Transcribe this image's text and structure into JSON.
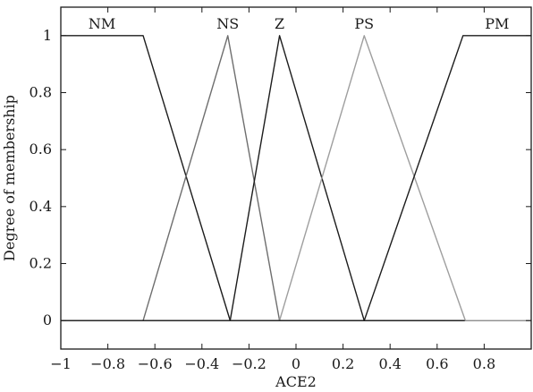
{
  "chart_data": {
    "type": "line",
    "title": "",
    "xlabel": "ACE2",
    "ylabel": "Degree of membership",
    "xlim": [
      -1,
      1
    ],
    "ylim": [
      -0.1,
      1.1
    ],
    "xticks": [
      -1,
      -0.8,
      -0.6,
      -0.4,
      -0.2,
      0,
      0.2,
      0.4,
      0.6,
      0.8
    ],
    "xtick_labels": [
      "−1",
      "−0.8",
      "−0.6",
      "−0.4",
      "−0.2",
      "0",
      "0.2",
      "0.4",
      "0.6",
      "0.8"
    ],
    "yticks": [
      0,
      0.2,
      0.4,
      0.6,
      0.8,
      1
    ],
    "ytick_labels": [
      "0",
      "0.2",
      "0.4",
      "0.6",
      "0.8",
      "1"
    ],
    "grid": false,
    "series": [
      {
        "name": "NM",
        "color": "#1c1c1c",
        "x": [
          -1,
          -0.65,
          -0.28,
          1
        ],
        "y": [
          1,
          1,
          0,
          0
        ]
      },
      {
        "name": "NS",
        "color": "#6e6e6e",
        "x": [
          -1,
          -0.65,
          -0.29,
          -0.07,
          1
        ],
        "y": [
          0,
          0,
          1,
          0,
          0
        ]
      },
      {
        "name": "Z",
        "color": "#1c1c1c",
        "x": [
          -1,
          -0.28,
          -0.07,
          0.29,
          1
        ],
        "y": [
          0,
          0,
          1,
          0,
          0
        ]
      },
      {
        "name": "PS",
        "color": "#9e9e9e",
        "x": [
          -1,
          -0.07,
          0.29,
          0.72,
          1
        ],
        "y": [
          0,
          0,
          1,
          0,
          0
        ]
      },
      {
        "name": "PM",
        "color": "#1c1c1c",
        "x": [
          -1,
          0.29,
          0.71,
          1
        ],
        "y": [
          0,
          0,
          1,
          1
        ]
      }
    ]
  }
}
